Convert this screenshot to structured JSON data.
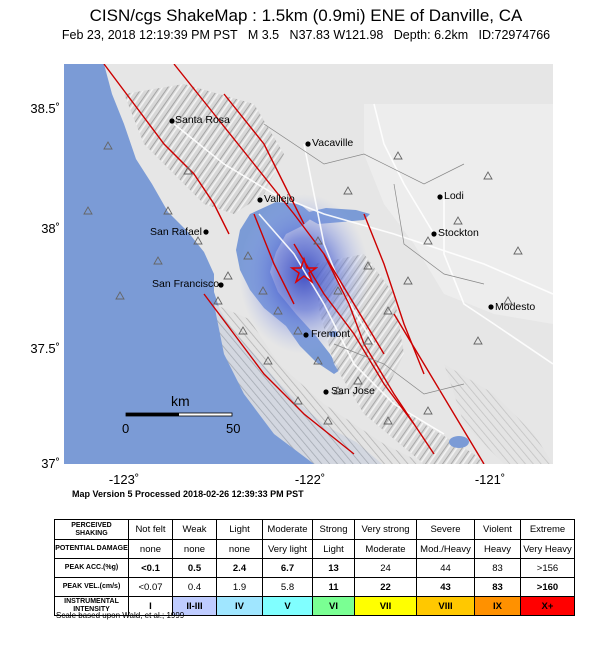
{
  "title": "CISN/cgs ShakeMap : 1.5km (0.9mi) ENE of Danville, CA",
  "subtitle": "Feb 23, 2018 12:19:39 PM PST   M 3.5   N37.83 W121.98   Depth: 6.2km   ID:72974766",
  "map": {
    "lat_labels": [
      "38.5˚",
      "38˚",
      "37.5˚",
      "37˚"
    ],
    "lon_labels": [
      "-123˚",
      "-122˚",
      "-121˚"
    ],
    "cities": [
      "Santa Rosa",
      "Vacaville",
      "Vallejo",
      "Lodi",
      "San Rafael",
      "Stockton",
      "San Francisco",
      "Modesto",
      "Fremont",
      "San Jose"
    ],
    "scale": {
      "unit": "km",
      "start": "0",
      "end": "50"
    },
    "epicenter_icon": "star-icon",
    "station_icon": "triangle-icon",
    "colors": {
      "water": "#7b9bd6",
      "land": "#e6e6e6",
      "fault": "#cc0000",
      "shaking": "#5b6fd6"
    }
  },
  "version_text": "Map Version 5 Processed 2018-02-26 12:39:33 PM PST",
  "legend": {
    "row_headers": [
      "PERCEIVED SHAKING",
      "POTENTIAL DAMAGE",
      "PEAK ACC.(%g)",
      "PEAK VEL.(cm/s)",
      "INSTRUMENTAL INTENSITY"
    ],
    "shaking": [
      "Not felt",
      "Weak",
      "Light",
      "Moderate",
      "Strong",
      "Very strong",
      "Severe",
      "Violent",
      "Extreme"
    ],
    "damage": [
      "none",
      "none",
      "none",
      "Very light",
      "Light",
      "Moderate",
      "Mod./Heavy",
      "Heavy",
      "Very Heavy"
    ],
    "acc": [
      "<0.1",
      "0.5",
      "2.4",
      "6.7",
      "13",
      "24",
      "44",
      "83",
      ">156"
    ],
    "vel": [
      "<0.07",
      "0.4",
      "1.9",
      "5.8",
      "11",
      "22",
      "43",
      "83",
      ">160"
    ],
    "intensity": [
      "I",
      "II-III",
      "IV",
      "V",
      "VI",
      "VII",
      "VIII",
      "IX",
      "X+"
    ],
    "intensity_colors": [
      "#ffffff",
      "#bfccff",
      "#a0e6ff",
      "#80ffff",
      "#7aff93",
      "#ffff00",
      "#ffc800",
      "#ff9100",
      "#ff0000"
    ]
  },
  "scale_note": "Scale based upon Wald, et al.; 1999"
}
